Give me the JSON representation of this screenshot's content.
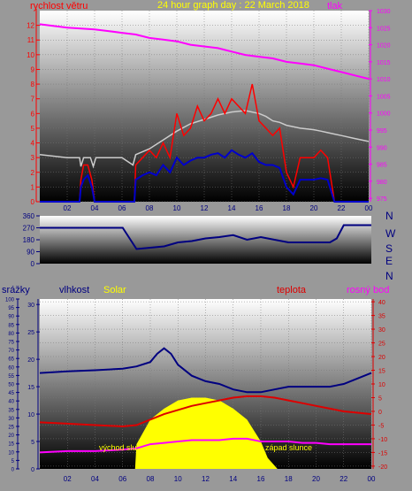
{
  "title": "24 hour graph day : 22 March 2018",
  "wind_panel": {
    "label_left": "rychlost větru",
    "label_right": "tlak",
    "colors": {
      "wind_gust": "#ff0000",
      "wind_avg": "#0000cc",
      "pressure": "#ff00ff",
      "temp_trace": "#cccccc"
    }
  },
  "direction_panel": {
    "compass": [
      "N",
      "W",
      "S",
      "E",
      "N"
    ],
    "color": "#000080"
  },
  "lower_panel": {
    "label_rain": "srážky",
    "label_humidity": "vlhkost",
    "label_solar": "Solar",
    "label_temp": "teplota",
    "label_dew": "rosný bod",
    "sunrise_label": "východ slu",
    "sunset_label": "západ slunce",
    "colors": {
      "humidity": "#000080",
      "temp": "#dd0000",
      "dew": "#ff00ff",
      "solar": "#ffff00"
    }
  },
  "chart_data": [
    {
      "type": "line",
      "name": "wind speed and pressure",
      "x_ticks": [
        "02",
        "04",
        "06",
        "08",
        "10",
        "12",
        "14",
        "16",
        "18",
        "20",
        "22",
        "00"
      ],
      "y_left_ticks": [
        "0",
        "1",
        "2",
        "3",
        "4",
        "5",
        "6",
        "7",
        "8",
        "9",
        "10",
        "11",
        "12"
      ],
      "y_left_range": [
        0,
        13
      ],
      "y_right_ticks": [
        "975",
        "980",
        "985",
        "990",
        "995",
        "1000",
        "1005",
        "1010",
        "1015",
        "1020",
        "1025",
        "1030"
      ],
      "y_right_range": [
        974,
        1030
      ],
      "pressure": {
        "x": [
          0,
          2,
          4,
          5,
          6,
          7,
          8,
          9,
          10,
          11,
          12,
          13,
          14,
          15,
          16,
          17,
          18,
          19,
          20,
          21,
          22,
          23,
          24
        ],
        "y": [
          1026,
          1025,
          1024.5,
          1024,
          1023.5,
          1023,
          1022,
          1021.5,
          1021,
          1020,
          1019.5,
          1019,
          1018,
          1017,
          1016.5,
          1016,
          1015,
          1014.5,
          1014,
          1013,
          1012,
          1011,
          1010
        ]
      },
      "gust": {
        "x": [
          0,
          2.9,
          3.0,
          3.2,
          3.5,
          3.8,
          4.0,
          6.9,
          7.0,
          7.5,
          8.0,
          8.5,
          9.0,
          9.5,
          10,
          10.5,
          11,
          11.5,
          12,
          12.5,
          13,
          13.5,
          14,
          14.5,
          15,
          15.5,
          16,
          16.5,
          17,
          17.5,
          18,
          18.5,
          19,
          19.5,
          20,
          20.5,
          21,
          21.5,
          24
        ],
        "y": [
          0,
          0,
          1.5,
          2.5,
          2.5,
          1.5,
          0,
          0,
          2.5,
          3,
          3.5,
          3,
          4,
          3,
          6,
          4.5,
          5,
          6.5,
          5.5,
          6,
          7,
          6,
          7,
          6.5,
          6,
          8,
          5.5,
          5,
          4.5,
          5,
          2,
          1,
          3,
          3,
          3,
          3.5,
          3,
          0,
          0
        ]
      },
      "avg": {
        "x": [
          0,
          2.9,
          3.0,
          3.2,
          3.5,
          3.8,
          4.0,
          6.9,
          7.0,
          7.5,
          8.0,
          8.5,
          9.0,
          9.5,
          10,
          10.5,
          11,
          11.5,
          12,
          12.5,
          13,
          13.5,
          14,
          14.5,
          15,
          15.5,
          16,
          16.5,
          17,
          17.5,
          18,
          18.5,
          19,
          19.5,
          20,
          20.5,
          21,
          21.5,
          24
        ],
        "y": [
          0,
          0,
          1,
          1.5,
          1.8,
          1,
          0,
          0,
          1.5,
          1.8,
          2,
          1.8,
          2.5,
          2,
          3,
          2.5,
          2.8,
          3,
          3,
          3.2,
          3.3,
          3,
          3.5,
          3.2,
          3,
          3.3,
          2.7,
          2.5,
          2.5,
          2.3,
          1,
          0.5,
          1.5,
          1.5,
          1.5,
          1.6,
          1.5,
          0,
          0
        ]
      },
      "trace": {
        "x": [
          0,
          2,
          2.9,
          3.0,
          3.2,
          3.7,
          3.9,
          4.1,
          6,
          6.8,
          7,
          8,
          9,
          10,
          11,
          12,
          13,
          14,
          15,
          16,
          16.5,
          17,
          17.5,
          18,
          19,
          20,
          20.5,
          21,
          22,
          23,
          24
        ],
        "y": [
          3.2,
          3.0,
          3.0,
          2.4,
          3.0,
          3.0,
          2.4,
          3.0,
          3.0,
          2.5,
          3.2,
          3.6,
          4.2,
          4.8,
          5.3,
          5.6,
          5.9,
          6.1,
          6.2,
          6.0,
          5.8,
          5.5,
          5.4,
          5.2,
          5.0,
          4.9,
          4.8,
          4.7,
          4.5,
          4.3,
          4.1
        ]
      }
    },
    {
      "type": "line",
      "name": "wind direction",
      "y_ticks": [
        "0",
        "90",
        "180",
        "270",
        "360"
      ],
      "y_range": [
        0,
        360
      ],
      "x": [
        0,
        5,
        5.4,
        5.6,
        6,
        7,
        8,
        9,
        10,
        11,
        12,
        13,
        14,
        15,
        16,
        17,
        18,
        19,
        20,
        20.5,
        21,
        21.5,
        22,
        23,
        24
      ],
      "y": [
        270,
        270,
        270,
        270,
        270,
        110,
        120,
        130,
        160,
        170,
        190,
        200,
        215,
        180,
        200,
        180,
        160,
        160,
        160,
        160,
        160,
        190,
        290,
        290,
        290
      ]
    },
    {
      "type": "line",
      "name": "rain humidity solar temperature dewpoint",
      "x_ticks": [
        "02",
        "04",
        "06",
        "08",
        "10",
        "12",
        "14",
        "16",
        "18",
        "20",
        "22",
        "00"
      ],
      "rain_ticks": [
        "0",
        "5",
        "10",
        "15",
        "20",
        "25",
        "30",
        "35",
        "40",
        "45",
        "50",
        "55",
        "60",
        "65",
        "70",
        "75",
        "80",
        "85",
        "90",
        "95",
        "100"
      ],
      "rain_range": [
        0,
        100
      ],
      "humidity_ticks": [
        "0",
        "5",
        "10",
        "15",
        "20",
        "25",
        "30"
      ],
      "humidity_range": [
        0,
        31
      ],
      "temp_ticks": [
        "-20",
        "-15",
        "-10",
        "-5",
        "0",
        "5",
        "10",
        "15",
        "20",
        "25",
        "30",
        "35",
        "40"
      ],
      "temp_range": [
        -21,
        41
      ],
      "humidity": {
        "x": [
          0,
          2,
          4,
          6,
          7,
          8,
          8.5,
          9,
          9.5,
          10,
          11,
          12,
          13,
          14,
          15,
          16,
          17,
          18,
          19,
          20,
          21,
          22,
          23,
          24
        ],
        "y": [
          17.5,
          17.8,
          18,
          18.3,
          18.7,
          19.5,
          21,
          22,
          21,
          19,
          17,
          16,
          15.5,
          14.5,
          14,
          14,
          14.5,
          15,
          15,
          15,
          15,
          15.5,
          16.5,
          17.5
        ]
      },
      "temperature": {
        "x": [
          0,
          2,
          4,
          6,
          7,
          8,
          9,
          10,
          11,
          12,
          13,
          14,
          15,
          16,
          17,
          18,
          19,
          20,
          21,
          22,
          23,
          24
        ],
        "y": [
          -4,
          -4.5,
          -5,
          -5.5,
          -5,
          -3,
          -1,
          0.5,
          2,
          3,
          4,
          5,
          5.5,
          5.5,
          5,
          4,
          3,
          2,
          1,
          0,
          -0.5,
          -1
        ]
      },
      "dewpoint": {
        "x": [
          0,
          2,
          4,
          6,
          7,
          8,
          9,
          10,
          11,
          12,
          13,
          14,
          15,
          16,
          17,
          18,
          19,
          20,
          21,
          22,
          23,
          24
        ],
        "y": [
          -15,
          -14.5,
          -14.5,
          -14,
          -13.5,
          -12,
          -11.5,
          -11,
          -10.5,
          -10.5,
          -10.5,
          -10,
          -10,
          -11,
          -11,
          -11,
          -11.5,
          -11.5,
          -12,
          -12,
          -12,
          -12
        ]
      },
      "solar": {
        "x": [
          6.9,
          7,
          8,
          9,
          10,
          11,
          12,
          13,
          14,
          15,
          16,
          16.5,
          17.2
        ],
        "y": [
          0,
          4.5,
          9,
          11,
          12.5,
          13,
          13,
          12.5,
          11,
          9,
          5,
          2,
          0
        ]
      }
    }
  ]
}
